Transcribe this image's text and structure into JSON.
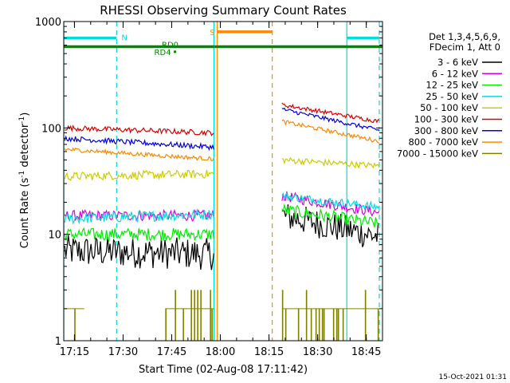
{
  "chart_data": {
    "type": "line",
    "title": "RHESSI Observing Summary Count Rates",
    "xlabel": "Start Time (02-Aug-08 17:11:42)",
    "ylabel": "Count Rate (s⁻¹ detector⁻¹)",
    "ylabel_main": "Count Rate (s",
    "ylabel_exp1": "-1",
    "ylabel_mid": " detector",
    "ylabel_exp2": "-1",
    "ylabel_end": ")",
    "x_scale": "time",
    "y_scale": "log",
    "xlim": [
      "17:11:42",
      "18:50:00"
    ],
    "ylim": [
      1,
      1000
    ],
    "x_ticks": [
      "17:15",
      "17:30",
      "17:45",
      "18:00",
      "18:15",
      "18:30",
      "18:45"
    ],
    "y_ticks": [
      "1",
      "10",
      "100",
      "1000"
    ],
    "timestamp": "15-Oct-2021 01:31",
    "legend": {
      "placement": "right",
      "header": [
        "Det 1,3,4,5,6,9,",
        "FDecim 1, Att 0"
      ],
      "entries": [
        {
          "label": "3 - 6 keV",
          "color": "#000000"
        },
        {
          "label": "6 - 12 keV",
          "color": "#dd00dd"
        },
        {
          "label": "12 - 25 keV",
          "color": "#00ee00"
        },
        {
          "label": "25 - 50 keV",
          "color": "#00dddd"
        },
        {
          "label": "50 - 100 keV",
          "color": "#cccc00"
        },
        {
          "label": "100 - 300 keV",
          "color": "#dd0000"
        },
        {
          "label": "300 - 800 keV",
          "color": "#0000dd"
        },
        {
          "label": "800 - 7000 keV",
          "color": "#ff8800"
        },
        {
          "label": "7000 - 15000 keV",
          "color": "#808000"
        }
      ]
    },
    "series": [
      {
        "color": "#000000",
        "segments": [
          {
            "x0": "17:12:00",
            "x1": "17:58:00",
            "y0": 7,
            "y1": 6.5,
            "noise": 0.15
          },
          {
            "x0": "18:19:00",
            "x1": "18:49:00",
            "y0": 15,
            "y1": 9.5,
            "noise": 0.14
          }
        ]
      },
      {
        "color": "#dd00dd",
        "segments": [
          {
            "x0": "17:12:00",
            "x1": "17:58:00",
            "y0": 15,
            "y1": 15,
            "noise": 0.05
          },
          {
            "x0": "18:19:00",
            "x1": "18:49:00",
            "y0": 23,
            "y1": 16,
            "noise": 0.05
          }
        ]
      },
      {
        "color": "#00ee00",
        "segments": [
          {
            "x0": "17:12:00",
            "x1": "17:58:00",
            "y0": 10,
            "y1": 10,
            "noise": 0.06
          },
          {
            "x0": "18:19:00",
            "x1": "18:49:00",
            "y0": 17,
            "y1": 12.5,
            "noise": 0.06
          }
        ]
      },
      {
        "color": "#00dddd",
        "segments": [
          {
            "x0": "17:12:00",
            "x1": "17:58:00",
            "y0": 14,
            "y1": 15.5,
            "noise": 0.05
          },
          {
            "x0": "18:19:00",
            "x1": "18:49:00",
            "y0": 23,
            "y1": 18,
            "noise": 0.04
          }
        ]
      },
      {
        "color": "#cccc00",
        "segments": [
          {
            "x0": "17:12:00",
            "x1": "17:58:00",
            "y0": 35,
            "y1": 37,
            "noise": 0.04
          },
          {
            "x0": "18:19:00",
            "x1": "18:49:00",
            "y0": 50,
            "y1": 44,
            "noise": 0.03
          }
        ]
      },
      {
        "color": "#dd0000",
        "segments": [
          {
            "x0": "17:12:00",
            "x1": "17:58:00",
            "y0": 100,
            "y1": 90,
            "noise": 0.025
          },
          {
            "x0": "18:19:00",
            "x1": "18:49:00",
            "y0": 165,
            "y1": 115,
            "noise": 0.02
          }
        ]
      },
      {
        "color": "#0000dd",
        "segments": [
          {
            "x0": "17:12:00",
            "x1": "17:58:00",
            "y0": 80,
            "y1": 66,
            "noise": 0.025
          },
          {
            "x0": "18:19:00",
            "x1": "18:49:00",
            "y0": 150,
            "y1": 95,
            "noise": 0.02
          }
        ]
      },
      {
        "color": "#ff8800",
        "segments": [
          {
            "x0": "17:12:00",
            "x1": "17:58:00",
            "y0": 63,
            "y1": 51,
            "noise": 0.02
          },
          {
            "x0": "18:19:00",
            "x1": "18:49:00",
            "y0": 115,
            "y1": 75,
            "noise": 0.02
          }
        ]
      },
      {
        "color": "#808000",
        "segments": [
          {
            "x0": "17:12:00",
            "x1": "17:18:00",
            "y0": 1,
            "y1": 2,
            "noise": 0
          },
          {
            "x0": "17:43:00",
            "x1": "17:58:00",
            "y0": 1,
            "y1": 3,
            "noise": 0
          },
          {
            "x0": "18:19:00",
            "x1": "18:49:00",
            "y0": 1,
            "y1": 2.5,
            "noise": 0
          }
        ]
      }
    ],
    "vertical_lines": [
      {
        "x": "17:11:42",
        "style": "solid",
        "color": "#00dddd"
      },
      {
        "x": "17:28:00",
        "style": "dashed",
        "color": "#00dddd"
      },
      {
        "x": "17:58:00",
        "style": "solid",
        "color": "#00dddd"
      },
      {
        "x": "17:59:00",
        "style": "solid",
        "color": "#ff8800"
      },
      {
        "x": "18:16:00",
        "style": "dashed",
        "color": "#ff8800"
      },
      {
        "x": "18:39:00",
        "style": "solid",
        "color": "#00dddd"
      },
      {
        "x": "18:49:00",
        "style": "dashed",
        "color": "#00dddd"
      }
    ],
    "annotation_bars": [
      {
        "label": "N",
        "color": "#00dddd",
        "y": 700,
        "segments": [
          [
            "17:11:42",
            "17:28:00"
          ],
          [
            "18:39:00",
            "18:49:00"
          ]
        ]
      },
      {
        "label": "S",
        "color": "#ff8800",
        "y": 800,
        "segments": [
          [
            "17:59:00",
            "18:16:00"
          ]
        ]
      },
      {
        "label": "RD0",
        "color": "#008800",
        "y": 580,
        "segments": [
          [
            "17:11:42",
            "18:50:00"
          ]
        ]
      }
    ],
    "annotation_marks": [
      {
        "label": "RD4",
        "color": "#008800",
        "x": "17:46:00",
        "y": 520
      }
    ]
  }
}
